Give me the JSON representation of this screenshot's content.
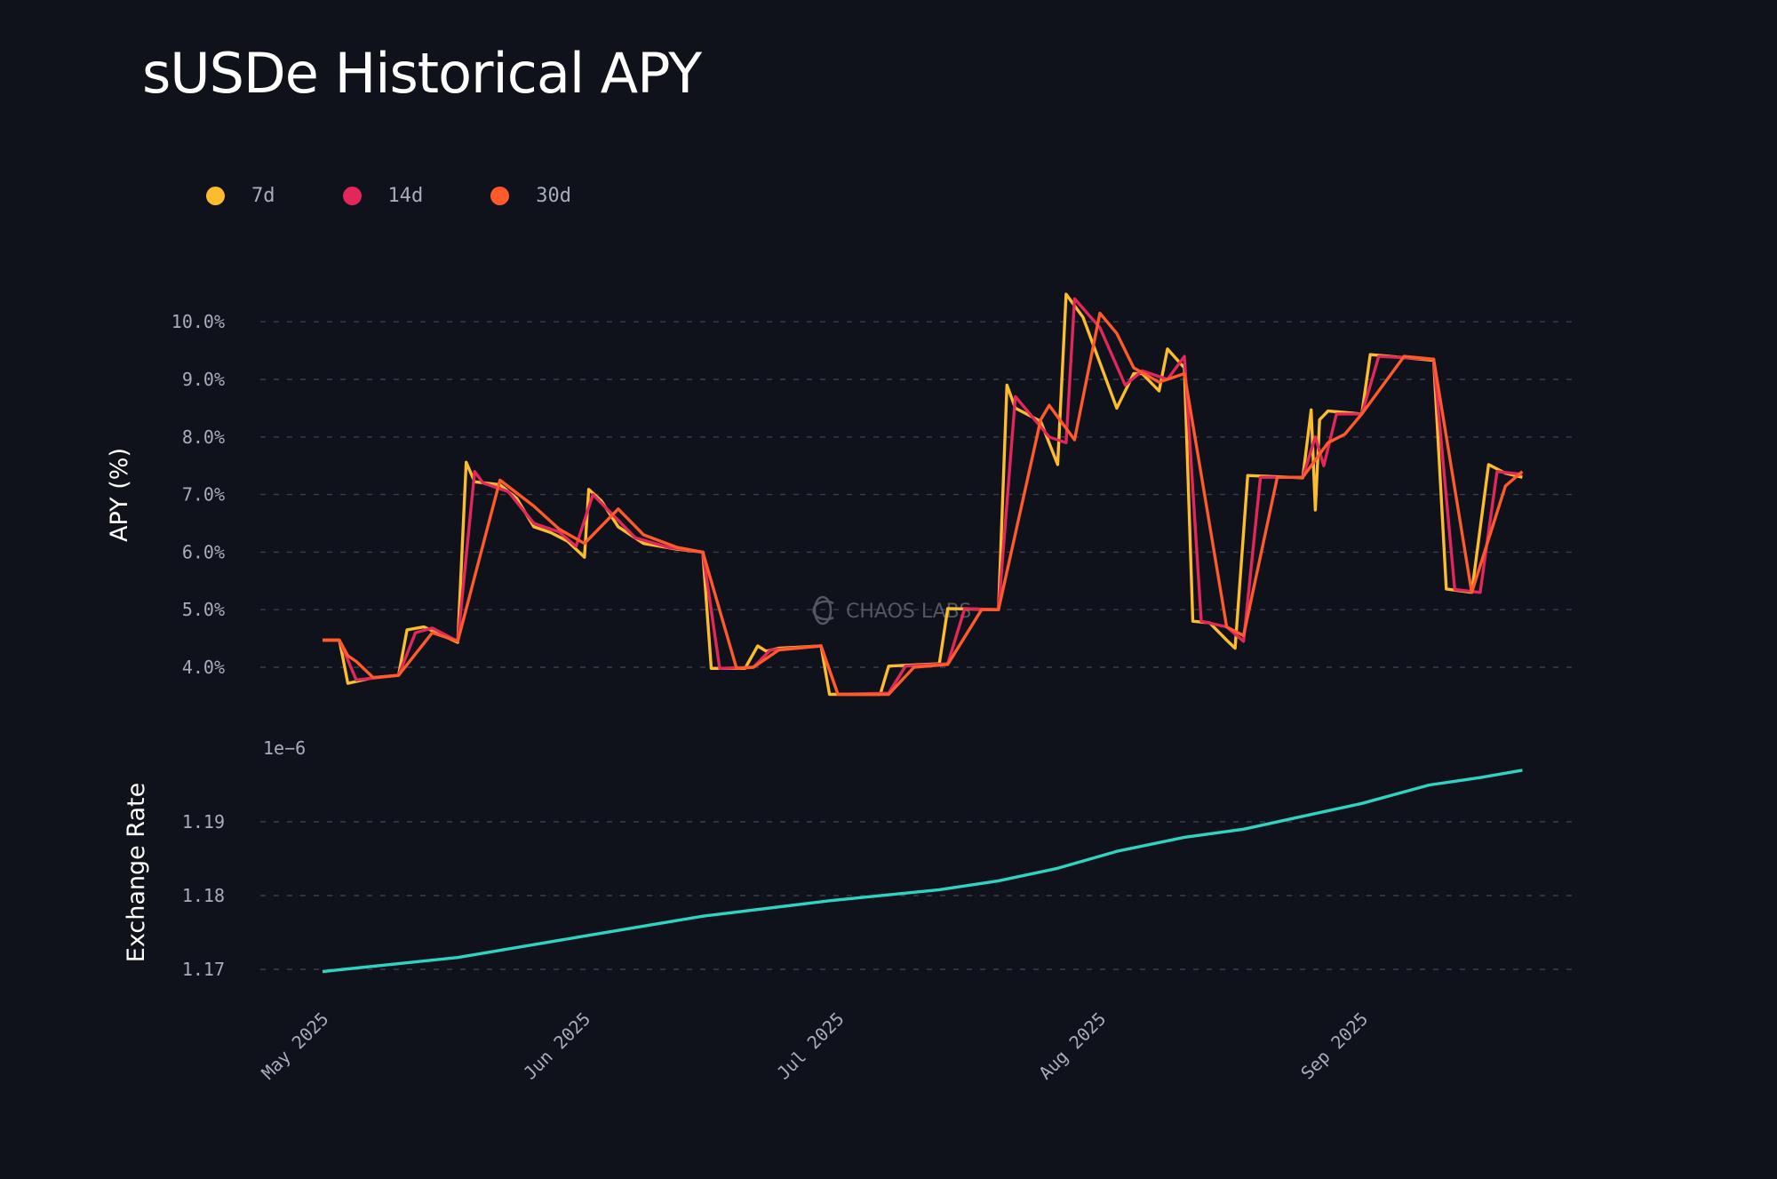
{
  "chart_data": [
    {
      "type": "line",
      "title": "sUSDe Historical APY",
      "ylabel": "APY (%)",
      "xlabel": "",
      "x_unit": "days since 2025-05-01",
      "ylim": [
        3.2,
        10.8
      ],
      "yticks": [
        4,
        5,
        6,
        7,
        8,
        9,
        10
      ],
      "ytick_labels": [
        "4.0%",
        "5.0%",
        "6.0%",
        "7.0%",
        "8.0%",
        "9.0%",
        "10.0%"
      ],
      "grid": true,
      "legend_placement": "top-left",
      "watermark": "CHAOS LABS",
      "series": [
        {
          "name": "7d",
          "color": "#fbbd2e",
          "points": [
            [
              0,
              4.47
            ],
            [
              2,
              4.47
            ],
            [
              3,
              3.72
            ],
            [
              6,
              3.82
            ],
            [
              9,
              3.86
            ],
            [
              10,
              4.65
            ],
            [
              12,
              4.7
            ],
            [
              16,
              4.43
            ],
            [
              17,
              7.56
            ],
            [
              18,
              7.22
            ],
            [
              21,
              7.17
            ],
            [
              23,
              6.93
            ],
            [
              25,
              6.44
            ],
            [
              27,
              6.34
            ],
            [
              29,
              6.19
            ],
            [
              31,
              5.91
            ],
            [
              31.5,
              7.09
            ],
            [
              33,
              6.89
            ],
            [
              35,
              6.44
            ],
            [
              38,
              6.15
            ],
            [
              42,
              6.05
            ],
            [
              45,
              6.0
            ],
            [
              46,
              3.98
            ],
            [
              50,
              3.98
            ],
            [
              51.5,
              4.37
            ],
            [
              52.5,
              4.28
            ],
            [
              54,
              4.33
            ],
            [
              59,
              4.37
            ],
            [
              60,
              3.53
            ],
            [
              66,
              3.53
            ],
            [
              67,
              4.02
            ],
            [
              73,
              4.06
            ],
            [
              74,
              5.02
            ],
            [
              80,
              5.0
            ],
            [
              81,
              8.9
            ],
            [
              82,
              8.5
            ],
            [
              85,
              8.27
            ],
            [
              87,
              7.52
            ],
            [
              88,
              10.48
            ],
            [
              90,
              10.08
            ],
            [
              94,
              8.5
            ],
            [
              96,
              9.1
            ],
            [
              97,
              9.1
            ],
            [
              99,
              8.8
            ],
            [
              100,
              9.53
            ],
            [
              102,
              9.2
            ],
            [
              103,
              4.8
            ],
            [
              105,
              4.77
            ],
            [
              107,
              4.47
            ],
            [
              108,
              4.33
            ],
            [
              109.5,
              7.33
            ],
            [
              116,
              7.29
            ],
            [
              117,
              8.47
            ],
            [
              117.5,
              6.73
            ],
            [
              118,
              8.3
            ],
            [
              119,
              8.45
            ],
            [
              123,
              8.4
            ],
            [
              124,
              9.43
            ],
            [
              131.5,
              9.33
            ],
            [
              133,
              5.36
            ],
            [
              136,
              5.3
            ],
            [
              138,
              7.52
            ],
            [
              140,
              7.37
            ],
            [
              142,
              7.3
            ]
          ]
        },
        {
          "name": "14d",
          "color": "#e2275a",
          "points": [
            [
              0,
              4.47
            ],
            [
              2,
              4.47
            ],
            [
              4,
              3.78
            ],
            [
              9,
              3.86
            ],
            [
              11,
              4.6
            ],
            [
              13,
              4.68
            ],
            [
              16,
              4.45
            ],
            [
              18,
              7.4
            ],
            [
              19,
              7.2
            ],
            [
              22,
              7.05
            ],
            [
              25,
              6.5
            ],
            [
              28,
              6.35
            ],
            [
              30,
              6.1
            ],
            [
              32,
              7.0
            ],
            [
              34,
              6.7
            ],
            [
              37,
              6.25
            ],
            [
              41,
              6.08
            ],
            [
              45,
              6.0
            ],
            [
              47,
              3.98
            ],
            [
              51,
              4.0
            ],
            [
              53,
              4.3
            ],
            [
              59,
              4.37
            ],
            [
              61,
              3.53
            ],
            [
              67,
              3.55
            ],
            [
              69,
              4.02
            ],
            [
              74,
              4.06
            ],
            [
              76,
              5.02
            ],
            [
              80,
              5.0
            ],
            [
              82,
              8.7
            ],
            [
              84,
              8.35
            ],
            [
              86,
              8.0
            ],
            [
              88,
              7.9
            ],
            [
              89,
              10.4
            ],
            [
              92,
              9.9
            ],
            [
              95,
              8.9
            ],
            [
              97,
              9.15
            ],
            [
              100,
              9.0
            ],
            [
              102,
              9.4
            ],
            [
              104,
              4.8
            ],
            [
              107,
              4.7
            ],
            [
              109,
              4.45
            ],
            [
              111,
              7.3
            ],
            [
              116,
              7.3
            ],
            [
              117.5,
              8.0
            ],
            [
              118.5,
              7.5
            ],
            [
              120,
              8.4
            ],
            [
              123,
              8.4
            ],
            [
              125,
              9.4
            ],
            [
              131.5,
              9.35
            ],
            [
              134,
              5.35
            ],
            [
              137,
              5.3
            ],
            [
              139,
              7.4
            ],
            [
              142,
              7.35
            ]
          ]
        },
        {
          "name": "30d",
          "color": "#ff5a2b",
          "points": [
            [
              0,
              4.47
            ],
            [
              2,
              4.47
            ],
            [
              3,
              4.2
            ],
            [
              4,
              4.1
            ],
            [
              6,
              3.82
            ],
            [
              9,
              3.86
            ],
            [
              13,
              4.6
            ],
            [
              16,
              4.45
            ],
            [
              21,
              7.25
            ],
            [
              25,
              6.8
            ],
            [
              28,
              6.4
            ],
            [
              31,
              6.15
            ],
            [
              32,
              6.3
            ],
            [
              35,
              6.75
            ],
            [
              38,
              6.3
            ],
            [
              42,
              6.08
            ],
            [
              45,
              6.0
            ],
            [
              49,
              3.98
            ],
            [
              51,
              4.0
            ],
            [
              54,
              4.3
            ],
            [
              59,
              4.37
            ],
            [
              61,
              3.53
            ],
            [
              67,
              3.53
            ],
            [
              70,
              4.0
            ],
            [
              74,
              4.05
            ],
            [
              78,
              5.0
            ],
            [
              80,
              5.0
            ],
            [
              85,
              8.3
            ],
            [
              86,
              8.55
            ],
            [
              89,
              7.95
            ],
            [
              92,
              10.15
            ],
            [
              94,
              9.8
            ],
            [
              96,
              9.2
            ],
            [
              99,
              8.95
            ],
            [
              102,
              9.1
            ],
            [
              107,
              4.7
            ],
            [
              109,
              4.55
            ],
            [
              113,
              7.3
            ],
            [
              116,
              7.3
            ],
            [
              119,
              7.9
            ],
            [
              121,
              8.05
            ],
            [
              123,
              8.4
            ],
            [
              126,
              9.0
            ],
            [
              128,
              9.4
            ],
            [
              131.5,
              9.35
            ],
            [
              136,
              5.3
            ],
            [
              140,
              7.15
            ],
            [
              142,
              7.4
            ]
          ]
        }
      ]
    },
    {
      "type": "line",
      "ylabel": "Exchange Rate",
      "offset_label": "1e−6",
      "x_unit": "days since 2025-05-01",
      "ylim": [
        1.165,
        1.2
      ],
      "yticks": [
        1.17,
        1.18,
        1.19
      ],
      "ytick_labels": [
        "1.17",
        "1.18",
        "1.19"
      ],
      "grid": true,
      "xticks": [
        0,
        31,
        61,
        92,
        123
      ],
      "xtick_labels": [
        "May 2025",
        "Jun 2025",
        "Jul 2025",
        "Aug 2025",
        "Sep 2025"
      ],
      "series": [
        {
          "name": "Exchange Rate",
          "color": "#2dd4bf",
          "points": [
            [
              0,
              1.1697
            ],
            [
              16,
              1.1716
            ],
            [
              31,
              1.1745
            ],
            [
              45,
              1.1772
            ],
            [
              60,
              1.1793
            ],
            [
              73,
              1.1808
            ],
            [
              80,
              1.182
            ],
            [
              87,
              1.1837
            ],
            [
              94,
              1.186
            ],
            [
              102,
              1.1879
            ],
            [
              109,
              1.189
            ],
            [
              117,
              1.191
            ],
            [
              123,
              1.1925
            ],
            [
              131,
              1.195
            ],
            [
              137,
              1.196
            ],
            [
              142,
              1.197
            ]
          ]
        }
      ]
    }
  ]
}
